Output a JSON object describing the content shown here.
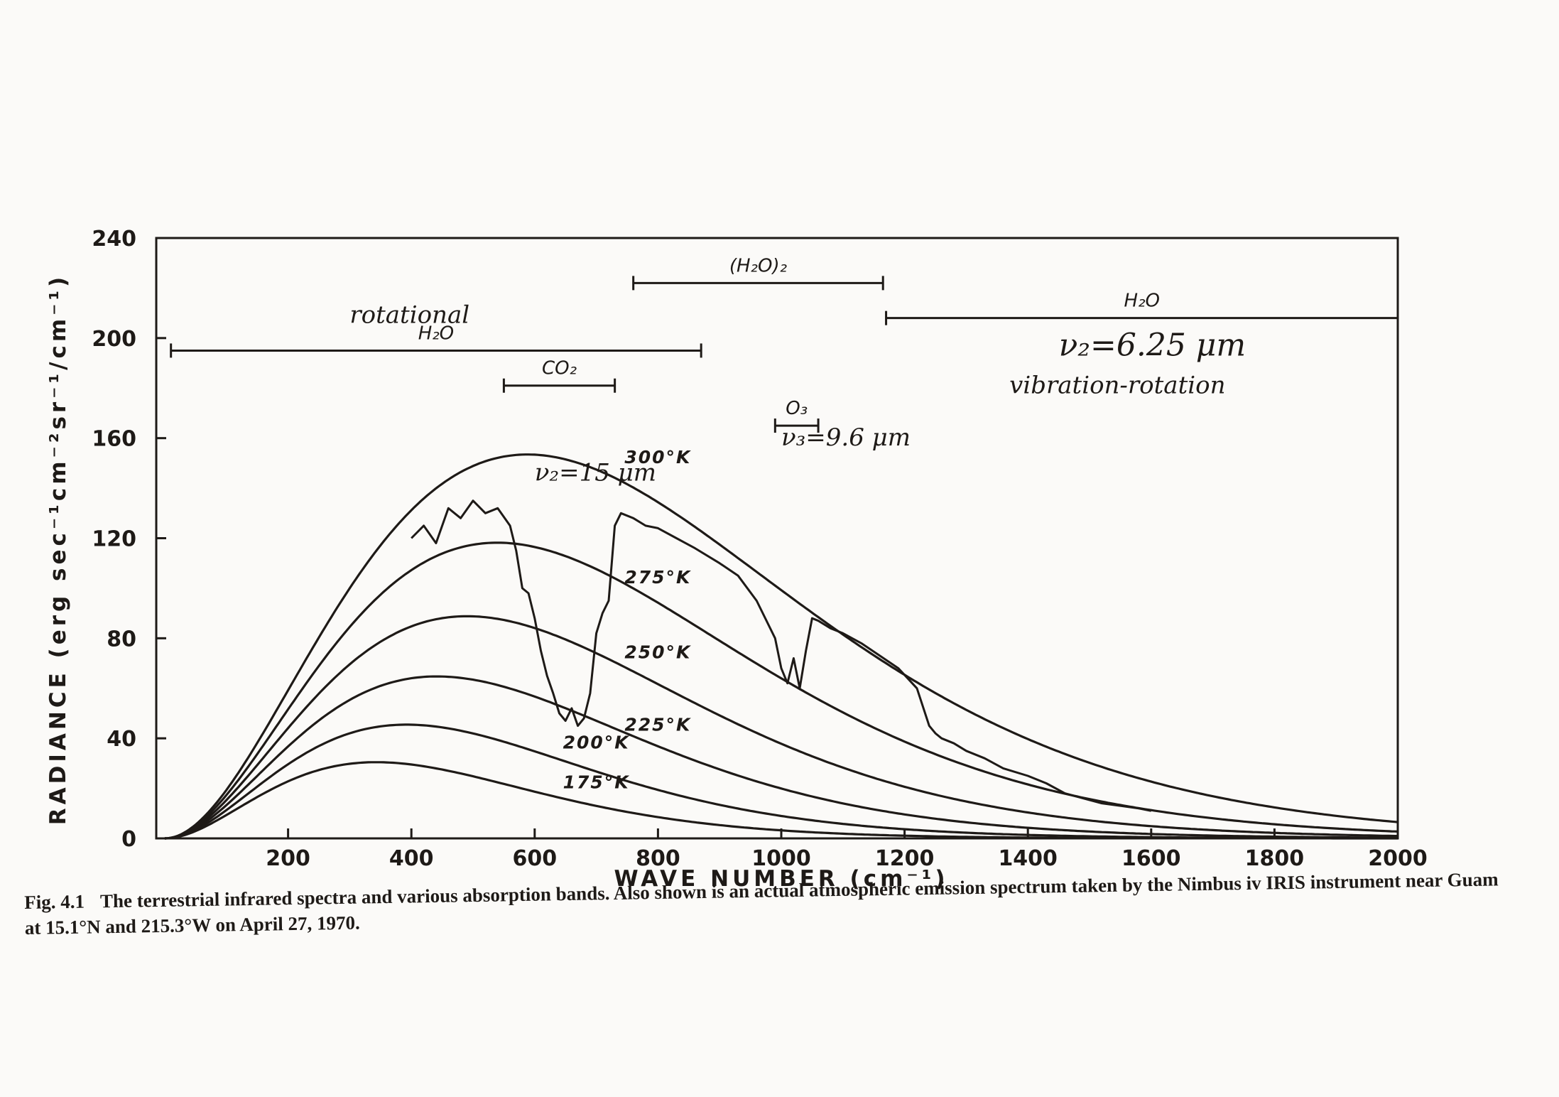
{
  "figure": {
    "caption_label": "Fig. 4.1",
    "caption_text": "The terrestrial infrared spectra and various absorption bands. Also shown is an actual atmospheric emission spectrum taken by the Nimbus iv IRIS instrument near Guam at 15.1°N and 215.3°W on April 27, 1970."
  },
  "chart_data": {
    "type": "line",
    "xlabel": "WAVE NUMBER (cm⁻¹)",
    "ylabel": "RADIANCE (erg sec⁻¹cm⁻²sr⁻¹/cm⁻¹)",
    "xlim": [
      0,
      2000
    ],
    "ylim": [
      0,
      240
    ],
    "xticks": [
      200,
      400,
      600,
      800,
      1000,
      1200,
      1400,
      1600,
      1800,
      2000
    ],
    "yticks": [
      0,
      40,
      80,
      120,
      160,
      200,
      240
    ],
    "x_tick_labels": [
      "200",
      "400",
      "600",
      "800",
      "1000",
      "1200",
      "1400",
      "1600",
      "1800",
      "2000"
    ],
    "y_tick_labels": [
      "0",
      "40",
      "80",
      "120",
      "160",
      "200",
      "240"
    ],
    "grid": false,
    "series": [
      {
        "name": "300°K",
        "kind": "blackbody",
        "temperature": 300
      },
      {
        "name": "275°K",
        "kind": "blackbody",
        "temperature": 275
      },
      {
        "name": "250°K",
        "kind": "blackbody",
        "temperature": 250
      },
      {
        "name": "225°K",
        "kind": "blackbody",
        "temperature": 225
      },
      {
        "name": "200°K",
        "kind": "blackbody",
        "temperature": 200
      },
      {
        "name": "175°K",
        "kind": "blackbody",
        "temperature": 175
      },
      {
        "kind": "observed",
        "x": [
          400,
          420,
          440,
          460,
          480,
          500,
          520,
          540,
          560,
          570,
          580,
          590,
          600,
          610,
          620,
          630,
          640,
          650,
          660,
          670,
          680,
          690,
          700,
          710,
          720,
          730,
          740,
          760,
          780,
          800,
          830,
          860,
          900,
          930,
          960,
          990,
          1000,
          1010,
          1020,
          1030,
          1040,
          1050,
          1060,
          1080,
          1100,
          1130,
          1160,
          1190,
          1220,
          1240,
          1250,
          1260,
          1280,
          1300,
          1330,
          1360,
          1400,
          1430,
          1460,
          1490,
          1520,
          1550,
          1580,
          1600
        ],
        "y": [
          120,
          125,
          118,
          132,
          128,
          135,
          130,
          132,
          125,
          115,
          100,
          98,
          88,
          75,
          65,
          58,
          50,
          47,
          52,
          45,
          48,
          58,
          82,
          90,
          95,
          125,
          130,
          128,
          125,
          124,
          120,
          116,
          110,
          105,
          95,
          80,
          68,
          62,
          72,
          60,
          75,
          88,
          87,
          84,
          82,
          78,
          73,
          68,
          60,
          45,
          42,
          40,
          38,
          35,
          32,
          28,
          25,
          22,
          18,
          16,
          14,
          13,
          12,
          11
        ]
      }
    ],
    "curve_labels": [
      {
        "text": "300°K",
        "x": 800,
        "y": 150
      },
      {
        "text": "275°K",
        "x": 800,
        "y": 102
      },
      {
        "text": "250°K",
        "x": 800,
        "y": 72
      },
      {
        "text": "225°K",
        "x": 800,
        "y": 43
      },
      {
        "text": "200°K",
        "x": 700,
        "y": 36
      },
      {
        "text": "175°K",
        "x": 700,
        "y": 20
      }
    ],
    "bands": [
      {
        "label": "H₂O",
        "x_start": 10,
        "x_end": 870,
        "y": 195
      },
      {
        "label": "(H₂O)₂",
        "x_start": 760,
        "x_end": 1165,
        "y": 222
      },
      {
        "label": "H₂O",
        "x_start": 1170,
        "x_end": 2000,
        "y": 208
      },
      {
        "label": "CO₂",
        "x_start": 550,
        "x_end": 730,
        "y": 181
      },
      {
        "label": "O₃",
        "x_start": 990,
        "x_end": 1060,
        "y": 165
      }
    ],
    "annotations": [
      {
        "text": "rotational",
        "x": 300,
        "y": 206
      },
      {
        "text": "ν₂=6.25 μm",
        "x": 1450,
        "y": 193
      },
      {
        "text": "vibration-rotation",
        "x": 1370,
        "y": 178
      },
      {
        "text": "ν₃=9.6 μm",
        "x": 1000,
        "y": 157
      },
      {
        "text": "ν₂=15 μm",
        "x": 600,
        "y": 143
      }
    ]
  }
}
